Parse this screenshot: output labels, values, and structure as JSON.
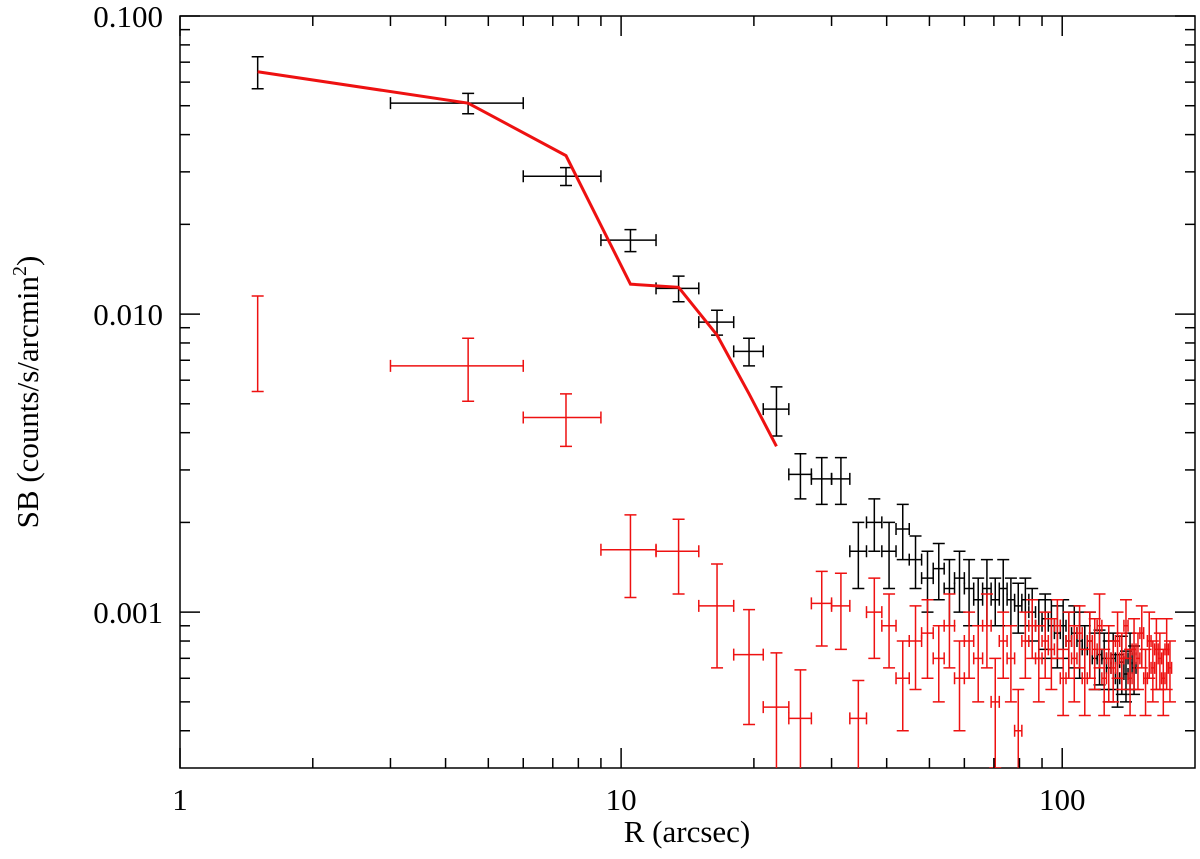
{
  "chart_data": {
    "type": "errorbar",
    "xlabel": "R (arcsec)",
    "ylabel": [
      "SB (counts/s/arcmin",
      "2",
      ")"
    ],
    "xscale": "log",
    "yscale": "log",
    "xlim": [
      1,
      200
    ],
    "ylim": [
      0.0003,
      0.1
    ],
    "xticks": [
      1,
      10,
      100
    ],
    "xminor_ticks": [
      2,
      3,
      4,
      5,
      6,
      7,
      8,
      9,
      20,
      30,
      40,
      50,
      60,
      70,
      80,
      90
    ],
    "yticks": [
      {
        "value": 0.001,
        "label": "0.001"
      },
      {
        "value": 0.01,
        "label": "0.010"
      },
      {
        "value": 0.1,
        "label": "0.100"
      }
    ],
    "yminor_ticks": [
      0.0004,
      0.0005,
      0.0006,
      0.0007,
      0.0008,
      0.0009,
      0.002,
      0.003,
      0.004,
      0.005,
      0.006,
      0.007,
      0.008,
      0.009,
      0.02,
      0.03,
      0.04,
      0.05,
      0.06,
      0.07,
      0.08,
      0.09
    ],
    "series": [
      {
        "color": "#000000",
        "xerr": 1.5,
        "x": [
          1.5,
          4.5,
          7.5,
          10.5,
          13.5,
          16.5,
          19.5,
          22.5,
          25.5,
          28.5,
          31.5,
          34.5,
          37.5,
          40.5,
          43.5,
          46.5,
          49.5,
          52.5,
          55.5,
          58.5,
          61.5,
          64.5,
          67.5,
          70.5,
          73.5,
          76.5,
          79.5,
          82.5,
          85.5,
          88.5,
          91.5,
          94.5,
          97.5,
          100.5,
          103.5,
          106.5,
          109.5,
          112.5,
          115.5,
          118.5,
          121.5,
          124.5,
          127.5,
          130.5,
          133.5,
          136.5,
          139.5,
          142.5,
          145.5
        ],
        "values": [
          0.065,
          0.051,
          0.029,
          0.0177,
          0.0122,
          0.0094,
          0.0075,
          0.0048,
          0.0029,
          0.0028,
          0.0028,
          0.0016,
          0.002,
          0.0016,
          0.0019,
          0.0015,
          0.0013,
          0.0014,
          0.0012,
          0.0013,
          0.0012,
          0.0011,
          0.0012,
          0.0011,
          0.0012,
          0.0011,
          0.00105,
          0.0011,
          0.001,
          0.0009,
          0.00095,
          0.0009,
          0.00085,
          0.0009,
          0.0008,
          0.00085,
          0.0008,
          0.00075,
          0.0008,
          0.0007,
          0.00072,
          0.0007,
          0.00065,
          0.0007,
          0.0006,
          0.00068,
          0.00062,
          0.0007,
          0.00065
        ],
        "yerr": [
          0.008,
          0.004,
          0.002,
          0.0015,
          0.0012,
          0.0009,
          0.0008,
          0.0009,
          0.0005,
          0.0005,
          0.0005,
          0.0004,
          0.0004,
          0.0004,
          0.0004,
          0.0003,
          0.0003,
          0.0003,
          0.0003,
          0.0003,
          0.0003,
          0.0002,
          0.0003,
          0.0002,
          0.0003,
          0.0002,
          0.0002,
          0.0002,
          0.0002,
          0.0002,
          0.0002,
          0.0002,
          0.0002,
          0.0002,
          0.0002,
          0.0002,
          0.0002,
          0.00015,
          0.0002,
          0.00015,
          0.00015,
          0.00015,
          0.00015,
          0.00015,
          0.00012,
          0.00015,
          0.00012,
          0.00015,
          0.00012
        ]
      },
      {
        "color": "#ee1111",
        "xerr": 1.5,
        "x": [
          1.5,
          4.5,
          7.5,
          10.5,
          13.5,
          16.5,
          19.5,
          22.5,
          25.5,
          28.5,
          31.5,
          34.5,
          37.5,
          40.5,
          43.5,
          46.5,
          49.5,
          52.5,
          55.5,
          58.5,
          61.5,
          64.5,
          67.5,
          70.5,
          73.5,
          76.5,
          79.5,
          82.5,
          85.5,
          88.5,
          91.5,
          94.5,
          97.5,
          100.5,
          103.5,
          106.5,
          109.5,
          112.5,
          115.5,
          118.5,
          121.5,
          124.5,
          127.5,
          130.5,
          133.5,
          136.5,
          139.5,
          142.5,
          145.5,
          148.5,
          151.5,
          154.5,
          157.5,
          160.5,
          163.5,
          166.5,
          169.5,
          172.5,
          175.5
        ],
        "values": [
          0.0085,
          0.0067,
          0.0045,
          0.00162,
          0.0016,
          0.00105,
          0.00072,
          0.00048,
          0.00044,
          0.00107,
          0.00105,
          0.00044,
          0.001,
          0.0009,
          0.0006,
          0.0008,
          0.00085,
          0.0007,
          0.0009,
          0.0006,
          0.0008,
          0.0007,
          0.0009,
          0.0005,
          0.0008,
          0.0007,
          0.0004,
          0.0008,
          0.0009,
          0.0007,
          0.0008,
          0.00075,
          0.0009,
          0.0006,
          0.0008,
          0.0007,
          0.00085,
          0.0006,
          0.0008,
          0.00075,
          0.0009,
          0.0006,
          0.0007,
          0.00065,
          0.0008,
          0.0007,
          0.0009,
          0.0006,
          0.00075,
          0.0007,
          0.00085,
          0.0006,
          0.0008,
          0.00065,
          0.00075,
          0.0007,
          0.0006,
          0.00075,
          0.00065
        ],
        "yerr": [
          0.003,
          0.0016,
          0.0009,
          0.0005,
          0.00045,
          0.0004,
          0.0003,
          0.00025,
          0.0002,
          0.0003,
          0.0003,
          0.00015,
          0.0003,
          0.00025,
          0.0002,
          0.00025,
          0.00025,
          0.0002,
          0.00025,
          0.0002,
          0.0002,
          0.0002,
          0.00025,
          0.0002,
          0.0002,
          0.0002,
          0.00015,
          0.0002,
          0.0002,
          0.0002,
          0.0002,
          0.0002,
          0.0002,
          0.00015,
          0.0002,
          0.0002,
          0.0002,
          0.00015,
          0.0002,
          0.0002,
          0.00025,
          0.00015,
          0.0002,
          0.00015,
          0.0002,
          0.00015,
          0.0002,
          0.00015,
          0.0002,
          0.00015,
          0.0002,
          0.00015,
          0.0002,
          0.00015,
          0.0002,
          0.00015,
          0.00015,
          0.0002,
          0.00015
        ]
      }
    ],
    "model": {
      "color": "#ee1111",
      "x": [
        1.5,
        4.5,
        7.5,
        10.5,
        13.5,
        16.5,
        19.5,
        22.5
      ],
      "values": [
        0.065,
        0.051,
        0.034,
        0.0126,
        0.0123,
        0.0085,
        0.0054,
        0.0036
      ]
    }
  }
}
